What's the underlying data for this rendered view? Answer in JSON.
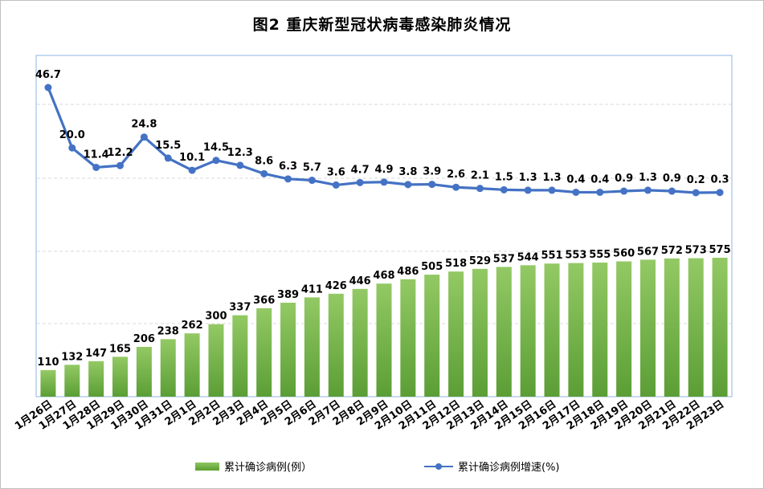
{
  "chart_data": {
    "type": "bar",
    "title": "图2    重庆新型冠状病毒感染肺炎情况",
    "categories": [
      "1月26日",
      "1月27日",
      "1月28日",
      "1月29日",
      "1月30日",
      "1月31日",
      "2月1日",
      "2月2日",
      "2月3日",
      "2月4日",
      "2月5日",
      "2月6日",
      "2月7日",
      "2月8日",
      "2月9日",
      "2月10日",
      "2月11日",
      "2月12日",
      "2月13日",
      "2月14日",
      "2月15日",
      "2月16日",
      "2月17日",
      "2月18日",
      "2月19日",
      "2月20日",
      "2月21日",
      "2月22日",
      "2月23日"
    ],
    "series": [
      {
        "name": "累计确诊病例(例）",
        "type": "bar",
        "values": [
          110,
          132,
          147,
          165,
          206,
          238,
          262,
          300,
          337,
          366,
          389,
          411,
          426,
          446,
          468,
          486,
          505,
          518,
          529,
          537,
          544,
          551,
          553,
          555,
          560,
          567,
          572,
          573,
          575
        ],
        "labels": [
          "110",
          "132",
          "147",
          "165",
          "206",
          "238",
          "262",
          "300",
          "337",
          "366",
          "389",
          "411",
          "426",
          "446",
          "468",
          "486",
          "505",
          "518",
          "529",
          "537",
          "544",
          "551",
          "553",
          "555",
          "560",
          "567",
          "572",
          "573",
          "575"
        ],
        "color": "#70ad47"
      },
      {
        "name": "累计确诊病例增速(%)",
        "type": "line",
        "values": [
          46.7,
          20.0,
          11.4,
          12.2,
          24.8,
          15.5,
          10.1,
          14.5,
          12.3,
          8.6,
          6.3,
          5.7,
          3.6,
          4.7,
          4.9,
          3.8,
          3.9,
          2.6,
          2.1,
          1.5,
          1.3,
          1.3,
          0.4,
          0.4,
          0.9,
          1.3,
          0.9,
          0.2,
          0.3
        ],
        "labels": [
          "46.7",
          "20.0",
          "11.4",
          "12.2",
          "24.8",
          "15.5",
          "10.1",
          "14.5",
          "12.3",
          "8.6",
          "6.3",
          "5.7",
          "3.6",
          "4.7",
          "4.9",
          "3.8",
          "3.9",
          "2.6",
          "2.1",
          "1.5",
          "1.3",
          "1.3",
          "0.4",
          "0.4",
          "0.9",
          "1.3",
          "0.9",
          "0.2",
          "0.3"
        ],
        "color": "#4472c4"
      }
    ],
    "grid": true,
    "legend_position": "bottom"
  }
}
